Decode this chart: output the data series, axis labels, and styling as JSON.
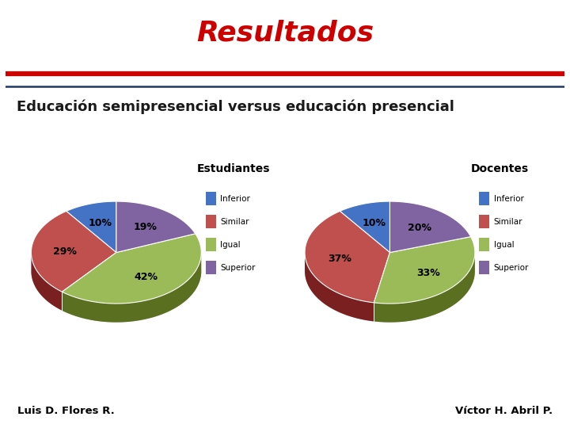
{
  "title": "Resultados",
  "subtitle": "Educación semipresencial versus educación presencial",
  "background_color": "#ffffff",
  "title_color": "#cc0000",
  "subtitle_color": "#1a1a1a",
  "pie1_title": "Estudiantes",
  "pie2_title": "Docentes",
  "pie1_values": [
    10,
    29,
    42,
    19
  ],
  "pie2_values": [
    10,
    37,
    33,
    20
  ],
  "labels": [
    "Inferior",
    "Similar",
    "Igual",
    "Superior"
  ],
  "colors": [
    "#4472C4",
    "#C0504D",
    "#9BBB59",
    "#8064A2"
  ],
  "shadow_colors": [
    "#2a4a8a",
    "#7a2020",
    "#5a7020",
    "#4a3070"
  ],
  "footer_left": "Luis D. Flores R.",
  "footer_right": "Víctor H. Abril P.",
  "title_fontsize": 26,
  "subtitle_fontsize": 13,
  "pie_label_fontsize": 9
}
